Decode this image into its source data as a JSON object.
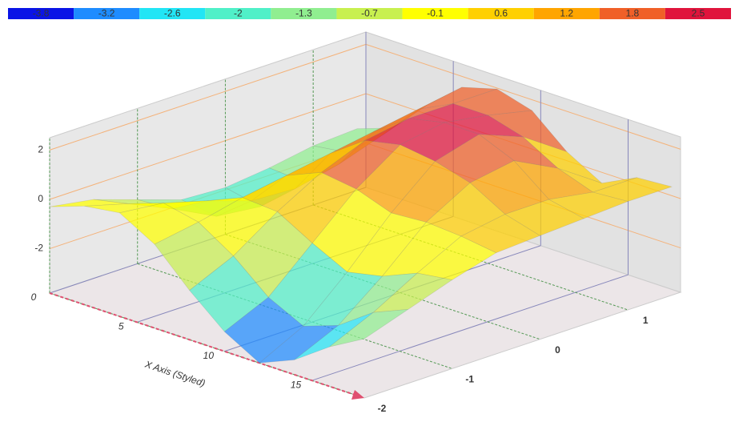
{
  "chart_data": {
    "type": "surface",
    "x_label": "X Axis (Styled)",
    "colorscale": {
      "values": [
        -3.8,
        -3.2,
        -2.6,
        -2,
        -1.3,
        -0.7,
        -0.1,
        0.6,
        1.2,
        1.8,
        2.5
      ],
      "colors": [
        "#0a14e6",
        "#1e8cff",
        "#22e5f5",
        "#50f0c8",
        "#90ee90",
        "#c8f050",
        "#ffff00",
        "#ffd000",
        "#ffa500",
        "#f06028",
        "#e0143c"
      ]
    },
    "x": [
      0,
      2,
      4,
      6,
      8,
      10,
      12,
      14,
      16,
      18
    ],
    "z": [
      -2,
      -1.5,
      -1,
      -0.5,
      0,
      0.5,
      1,
      1.5
    ],
    "values": [
      [
        -0.3,
        0.2,
        0.4,
        -0.4,
        -1.8,
        -3.0,
        -3.8,
        -3.2,
        -2.2,
        -1.4
      ],
      [
        -0.6,
        -0.3,
        0.2,
        -0.1,
        -1.0,
        -2.2,
        -2.9,
        -2.4,
        -1.4,
        -0.8
      ],
      [
        -1.2,
        -1.1,
        -0.3,
        0.3,
        0.2,
        -0.6,
        -1.3,
        -1.0,
        -0.4,
        -0.2
      ],
      [
        -1.8,
        -2.0,
        -0.9,
        0.6,
        1.2,
        1.0,
        0.5,
        0.6,
        0.5,
        0.3
      ],
      [
        -1.9,
        -2.2,
        -1.0,
        0.9,
        1.9,
        2.2,
        2.0,
        1.6,
        0.8,
        0.4
      ],
      [
        -1.7,
        -1.8,
        -0.6,
        1.2,
        2.2,
        2.5,
        2.5,
        1.9,
        0.8,
        0.5
      ],
      [
        -1.4,
        -1.2,
        0.0,
        1.5,
        2.2,
        2.2,
        1.8,
        1.0,
        0.5,
        0.6
      ],
      [
        -1.3,
        -0.8,
        0.6,
        1.8,
        2.2,
        1.8,
        0.6,
        -0.2,
        0.5,
        0.6
      ]
    ],
    "xlim": [
      0,
      18
    ],
    "xticks": [
      0,
      5,
      10,
      15
    ],
    "ylim": [
      -3.8,
      2.5
    ],
    "yticks": [
      -2,
      0,
      2
    ],
    "zlim": [
      -2,
      1.6
    ],
    "zticks": [
      -2,
      -1,
      0,
      1
    ]
  }
}
